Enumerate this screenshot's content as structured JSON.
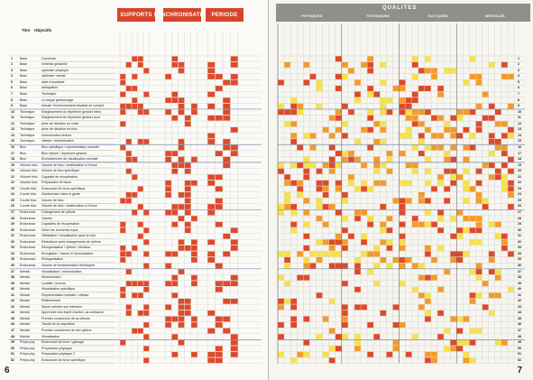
{
  "left_page": {
    "tabs": [
      "SUPPORTS",
      "SYNCHRONISATION",
      "PERIODE"
    ],
    "col_header_titre": "Titre",
    "col_header_objectifs": "Objectifs",
    "page_number": "6"
  },
  "right_page": {
    "band_title": "QUALITES",
    "band_groups": [
      "PHYSIQUES",
      "TECHNIQUES",
      "TACTIQUES",
      "MENTALES"
    ],
    "page_number": "7"
  },
  "rows": [
    {
      "n": "1",
      "cat": "Base",
      "obj": "Ouverture"
    },
    {
      "n": "2",
      "cat": "Base",
      "obj": "richesse gestuelle"
    },
    {
      "n": "3",
      "cat": "Base",
      "obj": "optimiser physique"
    },
    {
      "n": "4",
      "cat": "Base",
      "obj": "optimiser mental"
    },
    {
      "n": "5",
      "cat": "Base",
      "obj": "style d'escalade"
    },
    {
      "n": "6",
      "cat": "Base",
      "obj": "anticipation"
    },
    {
      "n": "7",
      "cat": "Base",
      "obj": "Technique"
    },
    {
      "n": "8",
      "cat": "Base",
      "obj": "Le risque gestionnage"
    },
    {
      "n": "9",
      "cat": "Base",
      "obj": "simuler l'environnement escalad en compet"
    },
    {
      "n": "10",
      "cat": "Technique",
      "obj": "Elargissement du répertoire gestuel extra"
    },
    {
      "n": "11",
      "cat": "Technique",
      "obj": "Elargissement du répertoire gestuel pour"
    },
    {
      "n": "12",
      "cat": "Technique",
      "obj": "prise de décision en voies"
    },
    {
      "n": "13",
      "cat": "Technique",
      "obj": "prise de décision en bloc"
    },
    {
      "n": "14",
      "cat": "Technique",
      "obj": "mémorisation lecture"
    },
    {
      "n": "15",
      "cat": "Technique",
      "obj": "vitesse / mémorisation"
    },
    {
      "n": "16",
      "cat": "Bloc",
      "obj": "Bloc spécifique / représentation mentale"
    },
    {
      "n": "17",
      "cat": "Bloc",
      "obj": "Bloc interne / répertoire gestuel"
    },
    {
      "n": "18",
      "cat": "Bloc",
      "obj": "Enchaînement de visualisation mentale"
    },
    {
      "n": "19",
      "cat": "Volume bloc",
      "obj": "Volume de bloc / amélioration à l'ennui"
    },
    {
      "n": "20",
      "cat": "Volume bloc",
      "obj": "Volume de bloc spécifique"
    },
    {
      "n": "21",
      "cat": "Volume bloc",
      "obj": "Capacité de récupération"
    },
    {
      "n": "22",
      "cat": "Volume bloc",
      "obj": "Préparation de blocs"
    },
    {
      "n": "23",
      "cat": "Courte bloc",
      "obj": "Endurance de force spécifique"
    },
    {
      "n": "24",
      "cat": "Courte bloc",
      "obj": "Gestionnaire dans le geste"
    },
    {
      "n": "25",
      "cat": "Courte bloc",
      "obj": "Volume de bloc"
    },
    {
      "n": "26",
      "cat": "Courte bloc",
      "obj": "Volume de bloc / amélioration à l'ennui"
    },
    {
      "n": "27",
      "cat": "Endurance",
      "obj": "Changement de rythme"
    },
    {
      "n": "28",
      "cat": "Endurance",
      "obj": "Volume"
    },
    {
      "n": "29",
      "cat": "Endurance",
      "obj": "Capacités de récupération"
    },
    {
      "n": "30",
      "cat": "Endurance",
      "obj": "Gérer les moments repos"
    },
    {
      "n": "31",
      "cat": "Endurance",
      "obj": "Vitalisation / visualisation dans la voie"
    },
    {
      "n": "32",
      "cat": "Endurance",
      "obj": "Résistance avec changements de rythme"
    },
    {
      "n": "33",
      "cat": "Endurance",
      "obj": "Réorganisation / rythme / décision"
    },
    {
      "n": "34",
      "cat": "Endurance",
      "obj": "Enregistrer / nature et mémorisation"
    },
    {
      "n": "35",
      "cat": "Endurance",
      "obj": "Réorganisation"
    },
    {
      "n": "36",
      "cat": "Endurance",
      "obj": "Volume de fondamentaux techniques"
    },
    {
      "n": "37",
      "cat": "Mental",
      "obj": "Visualisation / mémorisation"
    },
    {
      "n": "38",
      "cat": "Mental",
      "obj": "Mémorisation"
    },
    {
      "n": "39",
      "cat": "Mental",
      "obj": "Lucidité / erreurs"
    },
    {
      "n": "40",
      "cat": "Mental",
      "obj": "Visualisation spécifique"
    },
    {
      "n": "41",
      "cat": "Mental",
      "obj": "Représentation mentale / vitesse"
    },
    {
      "n": "42",
      "cat": "Mental",
      "obj": "Relâchement"
    },
    {
      "n": "43",
      "cat": "Mental",
      "obj": "Savoir orienter son intention"
    },
    {
      "n": "44",
      "cat": "Mental",
      "obj": "Apprendre son esprit d'action, sa confiance"
    },
    {
      "n": "45",
      "cat": "Mental",
      "obj": "Prendre conscience de sa vitesse"
    },
    {
      "n": "46",
      "cat": "Mental",
      "obj": "Travail de la respiration"
    },
    {
      "n": "47",
      "cat": "Mental",
      "obj": "Prendre conscience de son rythme"
    },
    {
      "n": "48",
      "cat": "Mental",
      "obj": "Visualisation"
    },
    {
      "n": "49",
      "cat": "Prépa phy",
      "obj": "Endurance de force / gainage"
    },
    {
      "n": "50",
      "cat": "Prépa phy",
      "obj": "Préparation physique"
    },
    {
      "n": "51",
      "cat": "Prépa phy",
      "obj": "Préparation physique 2"
    },
    {
      "n": "52",
      "cat": "Prépa phy",
      "obj": "Endurance de force spécifique"
    }
  ],
  "colors": {
    "red": "#de4a2c",
    "orange": "#f39b2a",
    "yellow": "#f6e14a",
    "grid": "#c5c2ba",
    "band": "#8f9089",
    "tab": "#d7452b"
  }
}
